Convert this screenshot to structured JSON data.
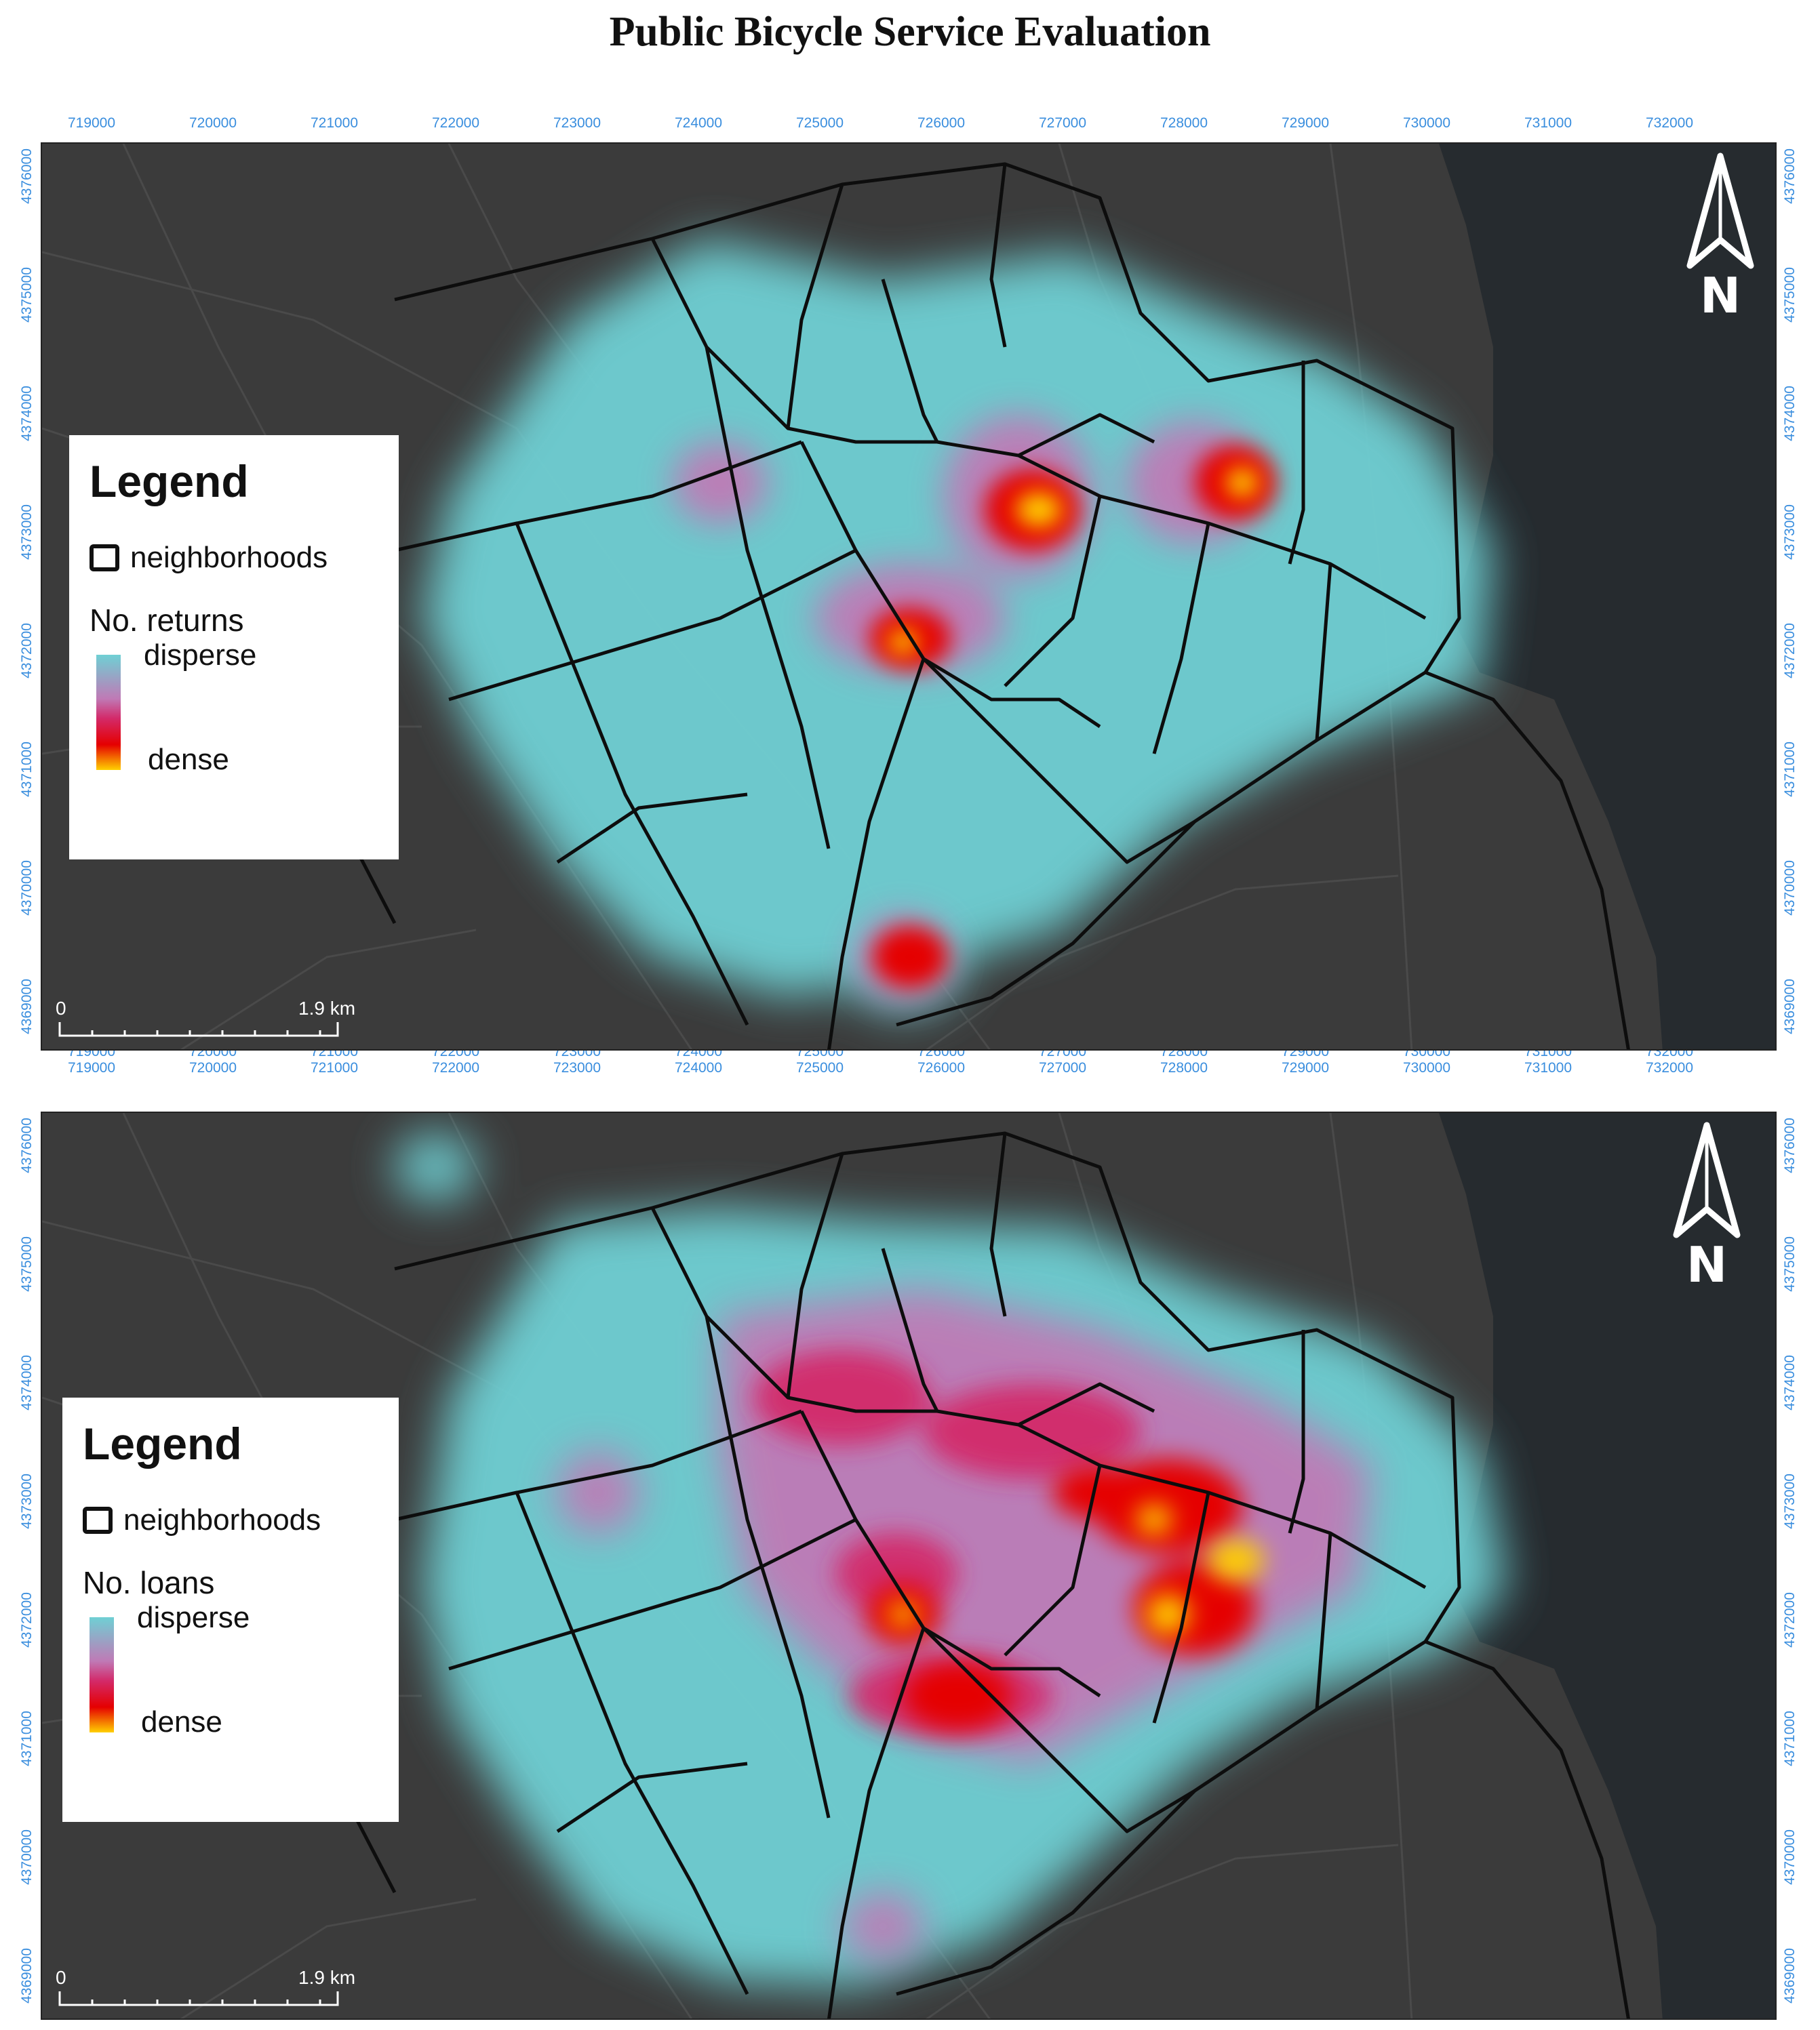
{
  "title": "Public Bicycle Service Evaluation",
  "x_ticks": [
    "719000",
    "720000",
    "721000",
    "722000",
    "723000",
    "724000",
    "725000",
    "726000",
    "727000",
    "728000",
    "729000",
    "730000",
    "731000",
    "732000"
  ],
  "y_ticks": [
    "4376000",
    "4375000",
    "4374000",
    "4373000",
    "4372000",
    "4371000",
    "4370000",
    "4369000"
  ],
  "panels": {
    "returns": {
      "legend": {
        "title": "Legend",
        "layer": "neighborhoods",
        "field": "No. returns",
        "ramp_top": "disperse",
        "ramp_bottom": "dense"
      },
      "north": "N",
      "scale": {
        "start": "0",
        "end": "1.9 km"
      }
    },
    "loans": {
      "legend": {
        "title": "Legend",
        "layer": "neighborhoods",
        "field": "No. loans",
        "ramp_top": "disperse",
        "ramp_bottom": "dense"
      },
      "north": "N",
      "scale": {
        "start": "0",
        "end": "1.9 km"
      }
    }
  },
  "colors": {
    "basemap": "#3b3b3b",
    "sea": "#262b2f",
    "boundary": "#0d0d0d",
    "disperse": "#6fd0d4",
    "mid": "#bf7ab6",
    "dense": "#e50000",
    "peak": "#ffd000",
    "tick": "#3a8ede"
  }
}
